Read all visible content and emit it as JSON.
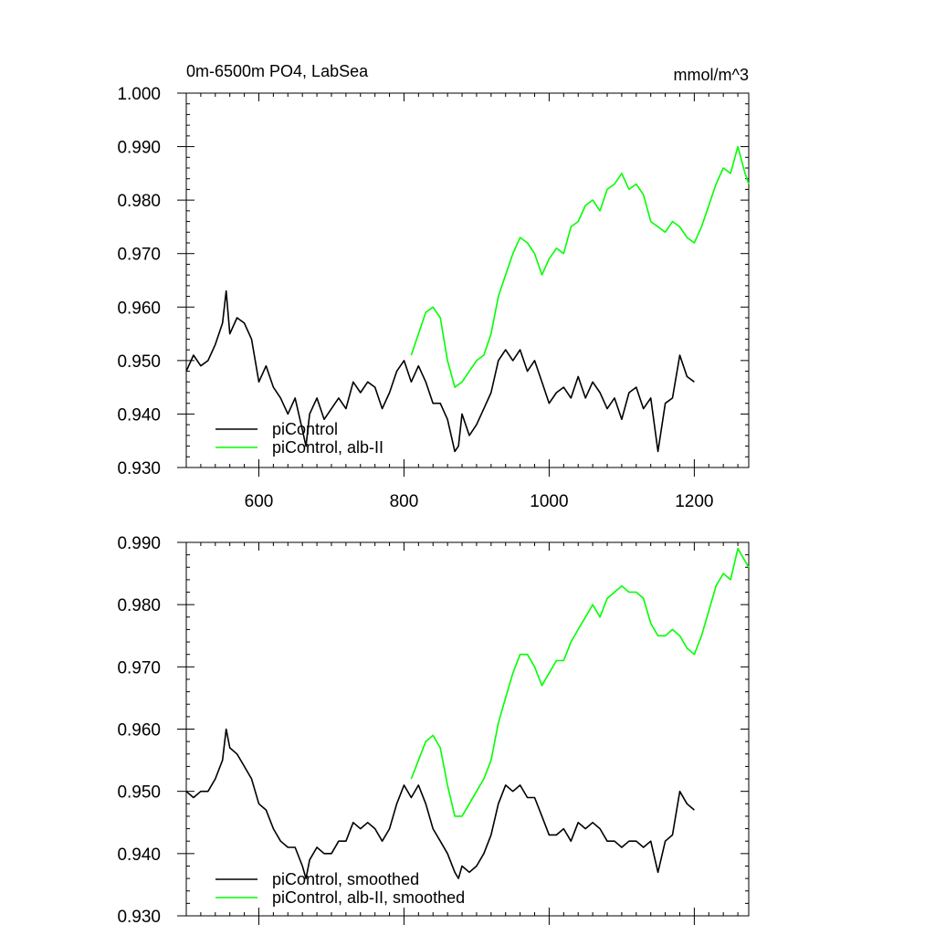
{
  "chart_data": [
    {
      "type": "line",
      "title": "0m-6500m PO4, LabSea",
      "units": "mmol/m^3",
      "xlim": [
        500,
        1275
      ],
      "ylim": [
        0.93,
        1.0
      ],
      "xticks": [
        600,
        800,
        1000,
        1200
      ],
      "yticks": [
        0.93,
        0.94,
        0.95,
        0.96,
        0.97,
        0.98,
        0.99,
        1.0
      ],
      "ytick_labels": [
        "0.930",
        "0.940",
        "0.950",
        "0.960",
        "0.970",
        "0.980",
        "0.990",
        "1.000"
      ],
      "xtick_labels": [
        "600",
        "800",
        "1000",
        "1200"
      ],
      "legend_position": "bottom-left",
      "series": [
        {
          "name": "piControl",
          "color": "#000000",
          "x": [
            500,
            510,
            520,
            530,
            540,
            550,
            555,
            560,
            570,
            580,
            590,
            600,
            610,
            620,
            630,
            640,
            650,
            660,
            665,
            670,
            680,
            690,
            700,
            710,
            720,
            730,
            740,
            750,
            760,
            770,
            780,
            790,
            800,
            810,
            820,
            830,
            840,
            850,
            860,
            870,
            875,
            880,
            890,
            900,
            910,
            920,
            930,
            940,
            950,
            960,
            970,
            980,
            990,
            1000,
            1010,
            1020,
            1030,
            1040,
            1050,
            1060,
            1070,
            1080,
            1090,
            1100,
            1110,
            1120,
            1130,
            1140,
            1150,
            1160,
            1170,
            1180,
            1190,
            1200
          ],
          "y": [
            0.948,
            0.951,
            0.949,
            0.95,
            0.953,
            0.957,
            0.963,
            0.955,
            0.958,
            0.957,
            0.954,
            0.946,
            0.949,
            0.945,
            0.943,
            0.94,
            0.943,
            0.937,
            0.934,
            0.94,
            0.943,
            0.939,
            0.941,
            0.943,
            0.941,
            0.946,
            0.944,
            0.946,
            0.945,
            0.941,
            0.944,
            0.948,
            0.95,
            0.946,
            0.949,
            0.946,
            0.942,
            0.942,
            0.939,
            0.933,
            0.934,
            0.94,
            0.936,
            0.938,
            0.941,
            0.944,
            0.95,
            0.952,
            0.95,
            0.952,
            0.948,
            0.95,
            0.946,
            0.942,
            0.944,
            0.945,
            0.943,
            0.947,
            0.943,
            0.946,
            0.944,
            0.941,
            0.943,
            0.939,
            0.944,
            0.945,
            0.941,
            0.943,
            0.933,
            0.942,
            0.943,
            0.951,
            0.947,
            0.946
          ]
        },
        {
          "name": "piControl, alb-II",
          "color": "#00ff00",
          "x": [
            810,
            820,
            830,
            840,
            850,
            860,
            870,
            880,
            890,
            900,
            910,
            920,
            930,
            940,
            950,
            960,
            970,
            980,
            990,
            1000,
            1010,
            1020,
            1030,
            1040,
            1050,
            1060,
            1070,
            1080,
            1090,
            1100,
            1110,
            1120,
            1130,
            1140,
            1150,
            1160,
            1170,
            1180,
            1190,
            1200,
            1210,
            1220,
            1230,
            1240,
            1250,
            1260,
            1270,
            1275
          ],
          "y": [
            0.951,
            0.955,
            0.959,
            0.96,
            0.958,
            0.95,
            0.945,
            0.946,
            0.948,
            0.95,
            0.951,
            0.955,
            0.962,
            0.966,
            0.97,
            0.973,
            0.972,
            0.97,
            0.966,
            0.969,
            0.971,
            0.97,
            0.975,
            0.976,
            0.979,
            0.98,
            0.978,
            0.982,
            0.983,
            0.985,
            0.982,
            0.983,
            0.981,
            0.976,
            0.975,
            0.974,
            0.976,
            0.975,
            0.973,
            0.972,
            0.975,
            0.979,
            0.983,
            0.986,
            0.985,
            0.99,
            0.985,
            0.983
          ]
        }
      ]
    },
    {
      "type": "line",
      "xlim": [
        500,
        1275
      ],
      "ylim": [
        0.93,
        0.99
      ],
      "xticks": [
        600,
        800,
        1000,
        1200
      ],
      "yticks": [
        0.93,
        0.94,
        0.95,
        0.96,
        0.97,
        0.98,
        0.99
      ],
      "ytick_labels": [
        "0.930",
        "0.940",
        "0.950",
        "0.960",
        "0.970",
        "0.980",
        "0.990"
      ],
      "legend_position": "bottom-left",
      "series": [
        {
          "name": "piControl, smoothed",
          "color": "#000000",
          "x": [
            500,
            510,
            520,
            530,
            540,
            550,
            555,
            560,
            570,
            580,
            590,
            600,
            610,
            620,
            630,
            640,
            650,
            660,
            665,
            670,
            680,
            690,
            700,
            710,
            720,
            730,
            740,
            750,
            760,
            770,
            780,
            790,
            800,
            810,
            820,
            830,
            840,
            850,
            860,
            870,
            875,
            880,
            890,
            900,
            910,
            920,
            930,
            940,
            950,
            960,
            970,
            980,
            990,
            1000,
            1010,
            1020,
            1030,
            1040,
            1050,
            1060,
            1070,
            1080,
            1090,
            1100,
            1110,
            1120,
            1130,
            1140,
            1150,
            1160,
            1170,
            1180,
            1190,
            1200
          ],
          "y": [
            0.95,
            0.949,
            0.95,
            0.95,
            0.952,
            0.955,
            0.96,
            0.957,
            0.956,
            0.954,
            0.952,
            0.948,
            0.947,
            0.944,
            0.942,
            0.941,
            0.941,
            0.938,
            0.936,
            0.939,
            0.941,
            0.94,
            0.94,
            0.942,
            0.942,
            0.945,
            0.944,
            0.945,
            0.944,
            0.942,
            0.944,
            0.948,
            0.951,
            0.949,
            0.951,
            0.948,
            0.944,
            0.942,
            0.94,
            0.937,
            0.936,
            0.938,
            0.937,
            0.938,
            0.94,
            0.943,
            0.948,
            0.951,
            0.95,
            0.951,
            0.949,
            0.949,
            0.946,
            0.943,
            0.943,
            0.944,
            0.942,
            0.945,
            0.944,
            0.945,
            0.944,
            0.942,
            0.942,
            0.941,
            0.942,
            0.942,
            0.941,
            0.942,
            0.937,
            0.942,
            0.943,
            0.95,
            0.948,
            0.947
          ]
        },
        {
          "name": "piControl, alb-II, smoothed",
          "color": "#00ff00",
          "x": [
            810,
            820,
            830,
            840,
            850,
            860,
            870,
            880,
            890,
            900,
            910,
            920,
            930,
            940,
            950,
            960,
            970,
            980,
            990,
            1000,
            1010,
            1020,
            1030,
            1040,
            1050,
            1060,
            1070,
            1080,
            1090,
            1100,
            1110,
            1120,
            1130,
            1140,
            1150,
            1160,
            1170,
            1180,
            1190,
            1200,
            1210,
            1220,
            1230,
            1240,
            1250,
            1260,
            1270,
            1275
          ],
          "y": [
            0.952,
            0.955,
            0.958,
            0.959,
            0.957,
            0.951,
            0.946,
            0.946,
            0.948,
            0.95,
            0.952,
            0.955,
            0.961,
            0.965,
            0.969,
            0.972,
            0.972,
            0.97,
            0.967,
            0.969,
            0.971,
            0.971,
            0.974,
            0.976,
            0.978,
            0.98,
            0.978,
            0.981,
            0.982,
            0.983,
            0.982,
            0.982,
            0.981,
            0.977,
            0.975,
            0.975,
            0.976,
            0.975,
            0.973,
            0.972,
            0.975,
            0.979,
            0.983,
            0.985,
            0.984,
            0.989,
            0.987,
            0.986
          ]
        }
      ]
    }
  ]
}
